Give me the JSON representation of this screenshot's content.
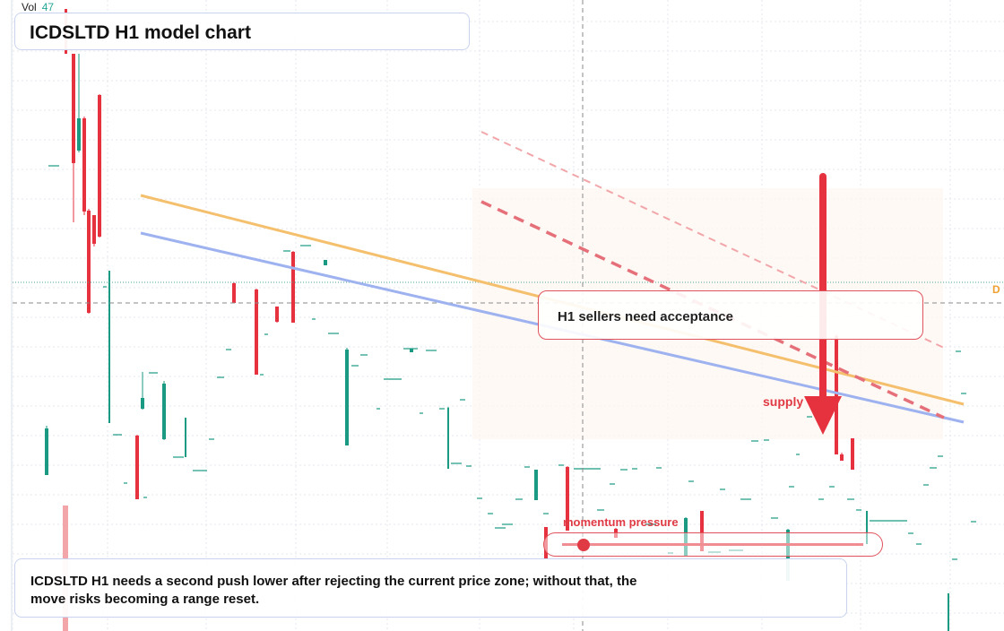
{
  "header": {
    "volume_label": "Vol",
    "volume_value": "47",
    "title": "ICDSLTD H1 model chart"
  },
  "annotations": {
    "callout": "H1 sellers need acceptance",
    "supply_label": "supply",
    "momentum_label": "momentum pressure",
    "note": "ICDSLTD H1 needs a second push lower after rejecting the current price zone; without that, the move risks becoming a range reset.",
    "right_edge_label": "D"
  },
  "colors": {
    "bull": "#1a9a82",
    "bear": "#e5323e",
    "bear_light": "#f2a6aa",
    "trend_orange": "#f5c06e",
    "trend_blue": "#9eb2f0",
    "guide_red": "#e5707a",
    "accent_red": "#e03a44",
    "grid": "#e4e7ee"
  },
  "chart_data": {
    "type": "candlestick",
    "title": "ICDSLTD H1 model chart",
    "timeframe": "H1",
    "y_axis": "price (no tick labels shown)",
    "grid": "dotted",
    "overlays": [
      "descending trendline (orange)",
      "descending trendline (blue)",
      "dashed resistance channel",
      "downward arrow",
      "momentum pressure slider"
    ],
    "momentum_pressure": 0.12
  }
}
